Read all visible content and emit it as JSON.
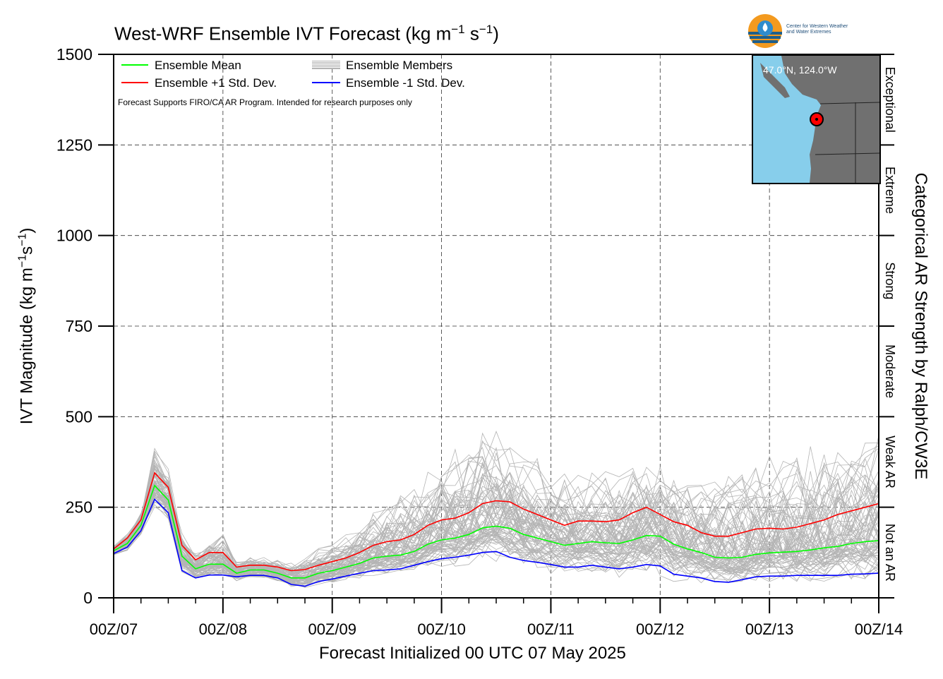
{
  "header": {
    "title_main": "West-WRF Ensemble IVT Forecast (kg m",
    "title_sup1": "−1",
    "title_mid": " s",
    "title_sup2": "−1",
    "title_end": ")"
  },
  "axes": {
    "xlabel": "Forecast Initialized 00 UTC 07 May 2025",
    "ylabel_main": "IVT Magnitude (kg m",
    "ylabel_sup1": "−1",
    "ylabel_mid": "s",
    "ylabel_sup2": "−1",
    "ylabel_end": ")",
    "y2label": "Categorical AR Strength by Ralph/CW3E"
  },
  "legend": {
    "mean": "Ensemble Mean",
    "plus": "Ensemble +1 Std. Dev.",
    "members": "Ensemble Members",
    "minus": "Ensemble -1 Std. Dev."
  },
  "disclaimer": "Forecast Supports FIRO/CA AR Program. Intended for research purposes only",
  "logo": {
    "line1": "Center for Western Weather",
    "line2": "and Water Extremes"
  },
  "inset": {
    "label": "47.0°N, 124.0°W"
  },
  "colors": {
    "mean": "#00ff00",
    "plus": "#ff0000",
    "minus": "#0000ff",
    "members": "#b4b4b4",
    "ocean": "#87ceeb",
    "land": "#707070",
    "marker": "#ff0000"
  },
  "chart_data": {
    "type": "line",
    "x": [
      0,
      3,
      6,
      9,
      12,
      15,
      18,
      21,
      24,
      27,
      30,
      33,
      36,
      39,
      42,
      45,
      48,
      51,
      54,
      57,
      60,
      63,
      66,
      69,
      72,
      75,
      78,
      81,
      84,
      87,
      90,
      93,
      96,
      99,
      102,
      105,
      108,
      111,
      114,
      117,
      120,
      123,
      126,
      129,
      132,
      135,
      138,
      141,
      144,
      147,
      150,
      153,
      156,
      159,
      162,
      165,
      168
    ],
    "x_ticks": [
      "00Z/07",
      "00Z/08",
      "00Z/09",
      "00Z/10",
      "00Z/11",
      "00Z/12",
      "00Z/13",
      "00Z/14"
    ],
    "y_ticks": [
      0,
      250,
      500,
      750,
      1000,
      1250,
      1500
    ],
    "ylim": [
      0,
      1500
    ],
    "xlim": [
      0,
      168
    ],
    "grid": true,
    "legend_position": "top-left",
    "series": [
      {
        "name": "Ensemble +1 Std. Dev.",
        "color": "#ff0000",
        "values": [
          135,
          165,
          215,
          345,
          305,
          145,
          105,
          125,
          125,
          85,
          90,
          90,
          85,
          75,
          78,
          90,
          100,
          110,
          125,
          145,
          155,
          160,
          175,
          200,
          215,
          220,
          235,
          260,
          268,
          265,
          245,
          230,
          215,
          200,
          212,
          212,
          210,
          215,
          235,
          250,
          230,
          210,
          200,
          180,
          170,
          170,
          180,
          190,
          192,
          190,
          195,
          205,
          215,
          230,
          240,
          250,
          260
        ]
      },
      {
        "name": "Ensemble Mean",
        "color": "#00ff00",
        "values": [
          130,
          150,
          200,
          310,
          270,
          115,
          80,
          93,
          93,
          68,
          77,
          77,
          68,
          55,
          55,
          68,
          75,
          85,
          95,
          110,
          115,
          118,
          128,
          148,
          160,
          165,
          175,
          193,
          198,
          192,
          175,
          165,
          155,
          145,
          150,
          155,
          152,
          150,
          160,
          172,
          170,
          148,
          135,
          125,
          112,
          110,
          112,
          120,
          124,
          126,
          128,
          132,
          138,
          142,
          150,
          155,
          158
        ]
      },
      {
        "name": "Ensemble -1 Std. Dev.",
        "color": "#0000ff",
        "values": [
          122,
          140,
          185,
          272,
          235,
          75,
          55,
          63,
          63,
          58,
          62,
          62,
          55,
          37,
          32,
          45,
          52,
          60,
          68,
          75,
          77,
          80,
          90,
          100,
          108,
          112,
          118,
          125,
          128,
          112,
          103,
          98,
          92,
          85,
          85,
          90,
          85,
          80,
          85,
          92,
          88,
          65,
          60,
          55,
          45,
          43,
          50,
          58,
          60,
          60,
          62,
          62,
          62,
          62,
          65,
          66,
          68
        ]
      }
    ],
    "members": {
      "name": "Ensemble Members",
      "count": 80,
      "envelope_low": [
        110,
        125,
        165,
        230,
        195,
        60,
        45,
        48,
        48,
        40,
        45,
        45,
        40,
        22,
        18,
        28,
        32,
        38,
        42,
        48,
        50,
        52,
        60,
        65,
        70,
        72,
        75,
        78,
        78,
        65,
        58,
        55,
        50,
        45,
        45,
        48,
        45,
        40,
        40,
        42,
        38,
        25,
        22,
        20,
        18,
        18,
        20,
        22,
        22,
        20,
        22,
        22,
        20,
        20,
        22,
        22,
        20
      ],
      "envelope_high": [
        145,
        185,
        260,
        440,
        370,
        200,
        135,
        175,
        200,
        110,
        120,
        120,
        120,
        105,
        120,
        155,
        170,
        200,
        220,
        260,
        300,
        330,
        360,
        420,
        430,
        450,
        470,
        500,
        510,
        480,
        460,
        430,
        400,
        380,
        390,
        390,
        385,
        400,
        430,
        430,
        410,
        390,
        380,
        380,
        390,
        400,
        420,
        430,
        440,
        450,
        460,
        470,
        480,
        490,
        500,
        510,
        520
      ]
    },
    "categories_right": [
      "Not an AR",
      "Weak AR",
      "Moderate",
      "Strong",
      "Extreme",
      "Exceptional"
    ],
    "category_breaks": [
      0,
      250,
      500,
      750,
      1000,
      1250,
      1500
    ]
  }
}
